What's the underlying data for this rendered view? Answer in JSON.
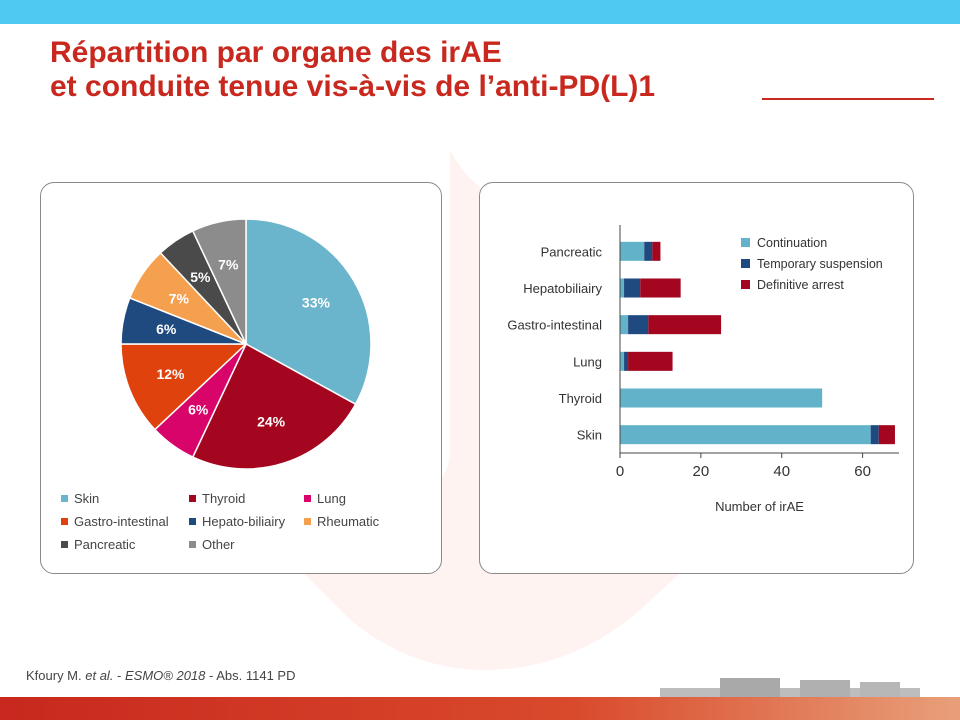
{
  "title": {
    "line1": "Répartition par organe des irAE",
    "line2": "et conduite tenue vis-à-vis de l’anti-PD(L)1"
  },
  "colors": {
    "accent_red": "#c8281e",
    "top_bar": "#4fc9f0"
  },
  "footer": {
    "author": "Kfoury M.",
    "etal": "et al.",
    "sep1": " - ",
    "source": "ESMO® 2018",
    "rest": " - Abs. 1141 PD"
  },
  "chart_data": [
    {
      "type": "pie",
      "title": "",
      "slices": [
        {
          "label": "Skin",
          "value": 33,
          "display": "33%",
          "color": "#6ab4cc"
        },
        {
          "label": "Thyroid",
          "value": 24,
          "display": "24%",
          "color": "#a3061e"
        },
        {
          "label": "Lung",
          "value": 6,
          "display": "6%",
          "color": "#d9046a"
        },
        {
          "label": "Gastro-intestinal",
          "value": 12,
          "display": "12%",
          "color": "#e0420e"
        },
        {
          "label": "Hepato-biliairy",
          "value": 6,
          "display": "6%",
          "color": "#1f4a80"
        },
        {
          "label": "Rheumatic",
          "value": 7,
          "display": "7%",
          "color": "#f4a04e"
        },
        {
          "label": "Pancreatic",
          "value": 5,
          "display": "5%",
          "color": "#4a4a4a"
        },
        {
          "label": "Other",
          "value": 7,
          "display": "7%",
          "color": "#8c8c8c"
        }
      ],
      "legend_placement": "bottom"
    },
    {
      "type": "bar",
      "orientation": "horizontal",
      "stacked": true,
      "categories": [
        "Pancreatic",
        "Hepatobiliairy",
        "Gastro-intestinal",
        "Lung",
        "Thyroid",
        "Skin"
      ],
      "series": [
        {
          "name": "Continuation",
          "color": "#62b3ca",
          "values": [
            6,
            1,
            2,
            1,
            50,
            62
          ]
        },
        {
          "name": "Temporary suspension",
          "color": "#1f4a80",
          "values": [
            2,
            4,
            5,
            1,
            0,
            2
          ]
        },
        {
          "name": "Definitive arrest",
          "color": "#a3061e",
          "values": [
            2,
            10,
            18,
            11,
            0,
            4
          ]
        }
      ],
      "xlabel": "Number of irAE",
      "ylabel": "",
      "xlim": [
        0,
        69
      ],
      "xticks": [
        "0",
        "20",
        "40",
        "60"
      ],
      "legend_placement": "top-right",
      "grid": false
    }
  ]
}
